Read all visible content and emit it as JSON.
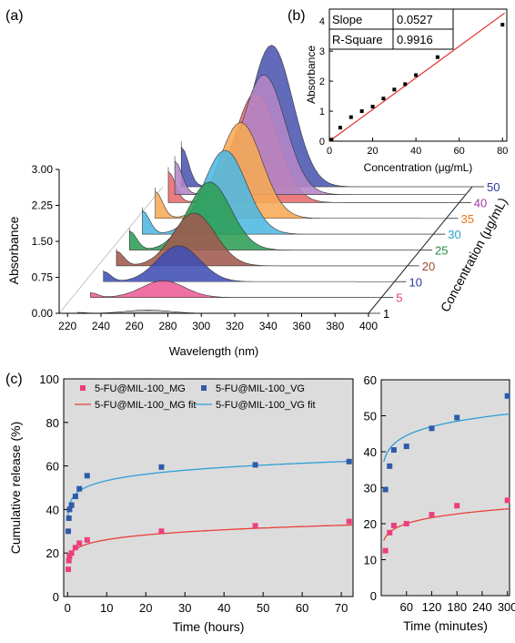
{
  "panel_labels": {
    "a": "(a)",
    "b": "(b)",
    "c": "(c)"
  },
  "chart_data": [
    {
      "id": "a",
      "type": "area",
      "title": "",
      "xlabel": "Wavelength (nm)",
      "ylabel": "Absorbance",
      "zlabel": "Concentration (μg/mL)",
      "xlim": [
        215,
        400
      ],
      "ylim": [
        0,
        3.0
      ],
      "xticks": [
        220,
        240,
        260,
        280,
        300,
        320,
        340,
        360,
        380,
        400
      ],
      "xtick_labels": [
        "220",
        "240",
        "260",
        "280",
        "300",
        "320",
        "340",
        "360",
        "380",
        "400"
      ],
      "yticks": [
        0,
        0.75,
        1.5,
        2.25,
        3.0
      ],
      "ytick_labels": [
        "0.00",
        "0.75",
        "1.50",
        "2.25",
        "3.00"
      ],
      "wavelength_start": 226,
      "peak_wavelength": 268,
      "series": [
        {
          "name": "1",
          "peak": 0.07,
          "fill": "#b5b5b5",
          "label_color": "#000000"
        },
        {
          "name": "5",
          "peak": 0.35,
          "fill": "#ee5c97",
          "label_color": "#e0407a"
        },
        {
          "name": "10",
          "peak": 0.75,
          "fill": "#3f4fb4",
          "label_color": "#2a3a9e"
        },
        {
          "name": "20",
          "peak": 1.1,
          "fill": "#a15a4f",
          "label_color": "#9a4a2e"
        },
        {
          "name": "25",
          "peak": 1.42,
          "fill": "#2f9e55",
          "label_color": "#2a8a45"
        },
        {
          "name": "30",
          "peak": 1.75,
          "fill": "#4fb8e2",
          "label_color": "#2d9fd0"
        },
        {
          "name": "35",
          "peak": 2.0,
          "fill": "#f6aa55",
          "label_color": "#e8741a"
        },
        {
          "name": "40",
          "peak": 2.3,
          "fill": "#e86b6b",
          "label_color": "#a437a4"
        },
        {
          "name": "50",
          "peak": 2.95,
          "fill": "#4b56b0",
          "label_color": "#2a3a9e"
        }
      ],
      "violet_curve": {
        "peak": 2.5,
        "fill": "#b386c7"
      }
    },
    {
      "id": "b",
      "type": "scatter",
      "title": "",
      "xlabel": "Concentration (μg/mL)",
      "ylabel": "Absorbance",
      "xlim": [
        0,
        82
      ],
      "ylim": [
        0,
        4.4
      ],
      "xticks": [
        0,
        20,
        40,
        60,
        80
      ],
      "yticks": [
        0,
        1,
        2,
        3,
        4
      ],
      "points": {
        "x": [
          1,
          5,
          10,
          15,
          20,
          25,
          30,
          35,
          40,
          50,
          80
        ],
        "y": [
          0.05,
          0.45,
          0.8,
          1.0,
          1.15,
          1.42,
          1.72,
          1.9,
          2.2,
          2.8,
          3.88
        ]
      },
      "fit": {
        "slope": 0.0527,
        "intercept": 0.0,
        "x_end": 81
      },
      "stats_table": [
        [
          "Slope",
          "0.0527"
        ],
        [
          "R-Square",
          "0.9916"
        ]
      ],
      "colors": {
        "points": "#000000",
        "fit": "#e3312f"
      }
    },
    {
      "id": "c-left",
      "type": "scatter",
      "title": "",
      "xlabel": "Time (hours)",
      "ylabel": "Cumulative release (%)",
      "xlim": [
        -1,
        73
      ],
      "ylim": [
        0,
        100
      ],
      "xticks": [
        0,
        10,
        20,
        30,
        40,
        50,
        60,
        70
      ],
      "yticks": [
        0,
        20,
        40,
        60,
        80,
        100
      ],
      "background": "#dcdcdc",
      "legend": {
        "placement": "top",
        "entries": [
          "5-FU@MIL-100_MG",
          "5-FU@MIL-100_VG",
          "5-FU@MIL-100_MG fit",
          "5-FU@MIL-100_VG fit"
        ]
      },
      "series": [
        {
          "name": "5-FU@MIL-100_MG",
          "color": "#ec3f7e",
          "x": [
            0.17,
            0.33,
            0.5,
            1,
            2,
            3,
            5,
            24,
            48,
            72
          ],
          "y": [
            12.5,
            16.5,
            18.5,
            20,
            22.5,
            24.5,
            26,
            30,
            32.5,
            34.5
          ]
        },
        {
          "name": "5-FU@MIL-100_VG",
          "color": "#2f5aa8",
          "x": [
            0.17,
            0.33,
            0.5,
            1,
            2,
            3,
            5,
            24,
            48,
            72
          ],
          "y": [
            30,
            36,
            40,
            42,
            46,
            49.5,
            55.5,
            59.5,
            60.5,
            62
          ]
        }
      ],
      "fits": [
        {
          "name": "5-FU@MIL-100_MG fit",
          "color": "#e8403a",
          "a": 20.0,
          "b": 0.116
        },
        {
          "name": "5-FU@MIL-100_VG fit",
          "color": "#2f9ed8",
          "a": 44.5,
          "b": 0.078
        }
      ]
    },
    {
      "id": "c-right",
      "type": "scatter",
      "title": "",
      "xlabel": "Time (minutes)",
      "ylabel": "",
      "xlim": [
        0,
        305
      ],
      "ylim": [
        0,
        60
      ],
      "xticks": [
        60,
        120,
        180,
        240,
        300
      ],
      "yticks": [
        0,
        10,
        20,
        30,
        40,
        50,
        60
      ],
      "background": "#dcdcdc",
      "series": [
        {
          "name": "5-FU@MIL-100_MG",
          "color": "#ec3f7e",
          "x": [
            10,
            20,
            30,
            60,
            120,
            180,
            300
          ],
          "y": [
            12.5,
            17.5,
            19.5,
            20,
            22.5,
            25,
            26.5
          ]
        },
        {
          "name": "5-FU@MIL-100_VG",
          "color": "#2f5aa8",
          "x": [
            10,
            20,
            30,
            60,
            120,
            180,
            300
          ],
          "y": [
            29.5,
            36,
            40.5,
            41.5,
            46.5,
            49.5,
            55.5
          ]
        }
      ],
      "fits": [
        {
          "name": "5-FU@MIL-100_MG fit",
          "color": "#e8403a",
          "a": 20.0,
          "b": 0.116
        },
        {
          "name": "5-FU@MIL-100_VG fit",
          "color": "#2f9ed8",
          "a": 44.5,
          "b": 0.078
        }
      ]
    }
  ]
}
